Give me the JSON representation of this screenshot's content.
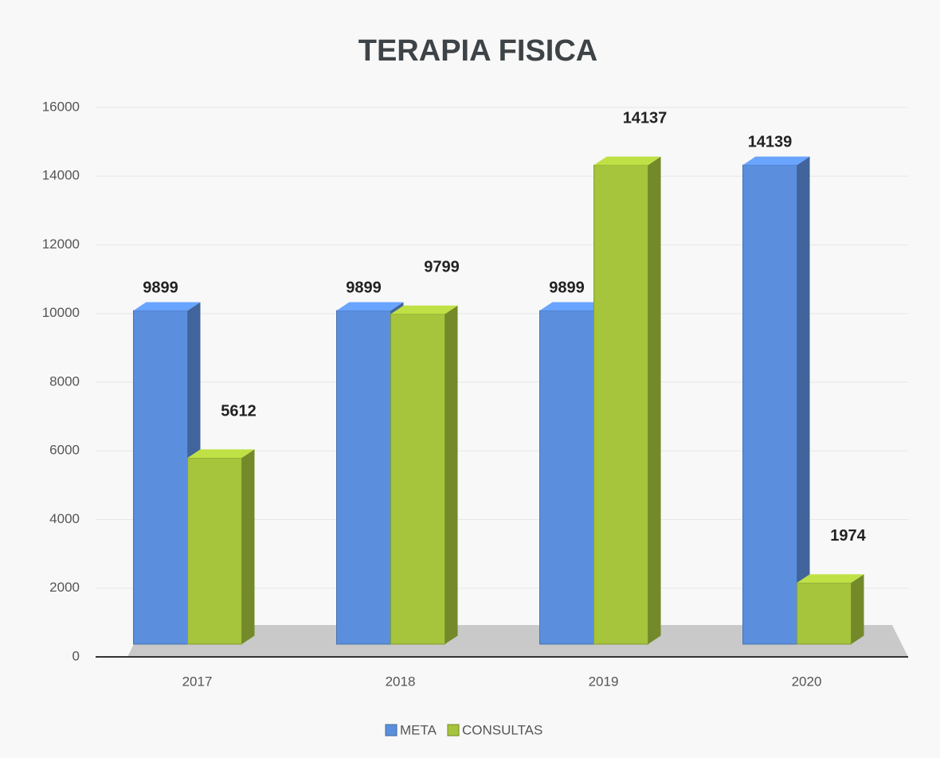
{
  "chart_data": {
    "type": "bar",
    "title": "TERAPIA  FISICA",
    "categories": [
      "2017",
      "2018",
      "2019",
      "2020"
    ],
    "series": [
      {
        "name": "META",
        "color": "#5b8fde",
        "values": [
          9899,
          9899,
          9899,
          14139
        ]
      },
      {
        "name": "CONSULTAS",
        "color": "#a6c43c",
        "values": [
          5612,
          9799,
          14137,
          1974
        ]
      }
    ],
    "ylim": [
      0,
      16000
    ],
    "yticks": [
      0,
      2000,
      4000,
      6000,
      8000,
      10000,
      12000,
      14000,
      16000
    ],
    "grid": true,
    "legend": "bottom"
  }
}
